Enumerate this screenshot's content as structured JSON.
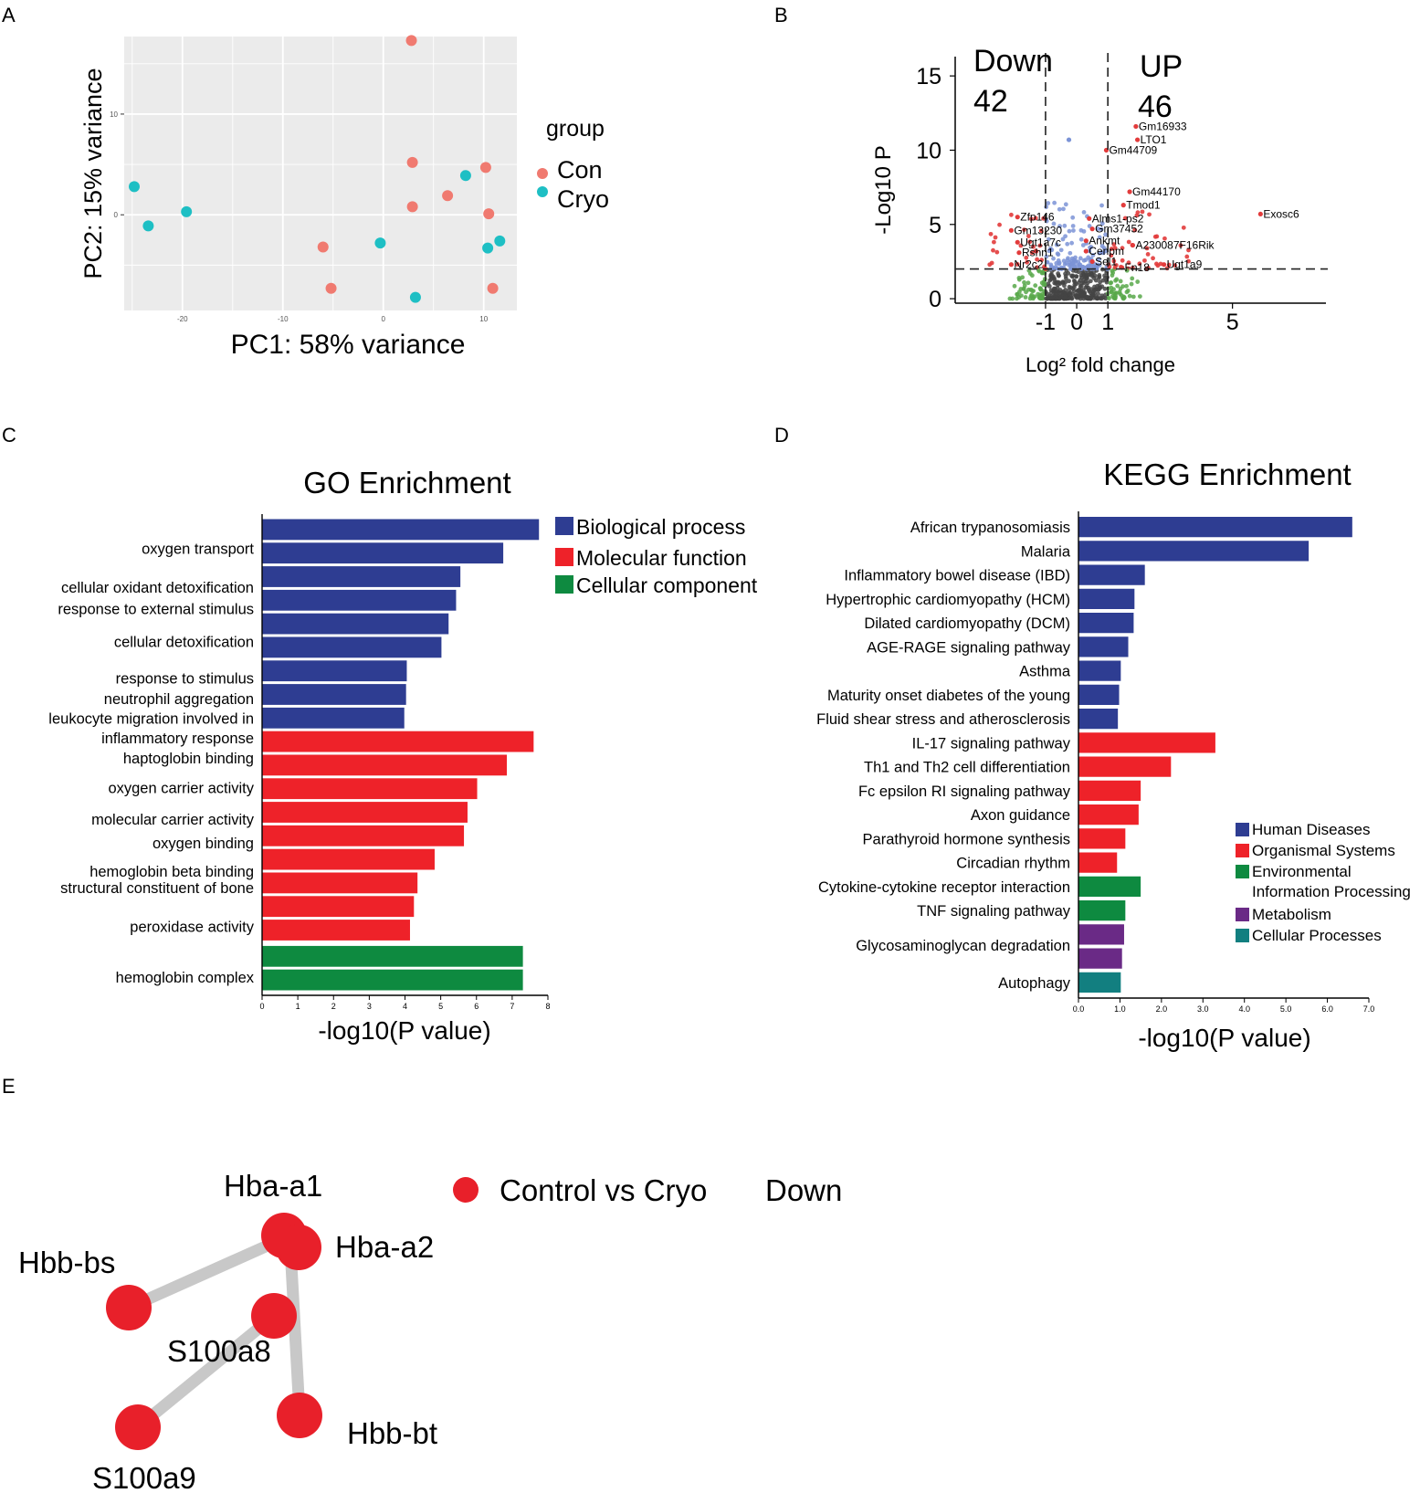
{
  "figure_panels": {
    "A": "A",
    "B": "B",
    "C": "C",
    "D": "D",
    "E": "E"
  },
  "colors": {
    "con": "#F07A70",
    "cryo": "#1EBFC4",
    "bio": "#2E3D92",
    "mol": "#EE2229",
    "cell": "#0E8A40",
    "human": "#2E3D92",
    "organismal": "#EE2229",
    "environmental": "#0E8A40",
    "metabolism": "#6A2A86",
    "cellular": "#127F80",
    "volcano_blue": "#7B93D6",
    "volcano_red": "#E23B3B",
    "volcano_green": "#58A84A",
    "volcano_grey": "#444444",
    "network_node": "#E8202A",
    "network_edge": "#C8C8C8",
    "panel_bg": "#EBEBEB"
  },
  "chart_data": [
    {
      "panel": "A",
      "type": "scatter",
      "title": "",
      "xlabel": "PC1: 58% variance",
      "ylabel": "PC2: 15% variance",
      "xlim": [
        -25.8,
        13.3
      ],
      "ylim": [
        -9.5,
        17.7
      ],
      "x_ticks": [
        -20,
        -10,
        0,
        10
      ],
      "x_tick_labels": [
        "-20",
        "-10",
        "0",
        "10"
      ],
      "y_ticks": [
        0,
        10
      ],
      "y_tick_labels": [
        "0",
        "10"
      ],
      "legend": {
        "title": "group",
        "position": "right",
        "entries": [
          "Con",
          "Cryo"
        ]
      },
      "series": [
        {
          "name": "Con",
          "x": [
            2.8,
            2.9,
            10.2,
            6.4,
            2.9,
            10.5,
            -6.0,
            -5.2,
            10.9
          ],
          "y": [
            17.3,
            5.2,
            4.7,
            1.9,
            0.8,
            0.1,
            -3.2,
            -7.3,
            -7.3
          ]
        },
        {
          "name": "Cryo",
          "x": [
            -24.8,
            -23.4,
            -19.6,
            8.2,
            -0.3,
            10.4,
            11.6,
            3.2
          ],
          "y": [
            2.8,
            -1.1,
            0.3,
            3.9,
            -2.8,
            -3.3,
            -2.6,
            -8.2
          ]
        }
      ]
    },
    {
      "panel": "B",
      "type": "scatter",
      "title": "",
      "xlabel": "Log² fold change",
      "ylabel": "-Log10 P",
      "xlim": [
        -3.9,
        8.0
      ],
      "ylim": [
        -0.3,
        16.3
      ],
      "x_ticks": [
        -1,
        0,
        1,
        5
      ],
      "x_tick_labels": [
        "-1",
        "0",
        "1",
        "5"
      ],
      "y_ticks": [
        0,
        5,
        10,
        15
      ],
      "y_tick_labels": [
        "0",
        "5",
        "10",
        "15"
      ],
      "fold_change_cutoffs": [
        -1,
        1
      ],
      "p_cutoff": 2,
      "annotations": {
        "down_label": "Down",
        "down_count": "42",
        "up_label": "UP",
        "up_count": "46"
      },
      "point_labels": [
        {
          "text": "Gm16933",
          "x": 1.9,
          "y": 11.6
        },
        {
          "text": "LTO1",
          "x": 1.95,
          "y": 10.7
        },
        {
          "text": "Gm44709",
          "x": 0.95,
          "y": 10.0
        },
        {
          "text": "Gm44170",
          "x": 1.7,
          "y": 7.2
        },
        {
          "text": "Tmod1",
          "x": 1.5,
          "y": 6.3
        },
        {
          "text": "Exosc6",
          "x": 5.9,
          "y": 5.7
        },
        {
          "text": "Zfp146",
          "x": -1.9,
          "y": 5.5
        },
        {
          "text": "Alms1-ps2",
          "x": 0.4,
          "y": 5.4
        },
        {
          "text": "Gm13230",
          "x": -2.1,
          "y": 4.6
        },
        {
          "text": "Gm37452",
          "x": 0.5,
          "y": 4.7
        },
        {
          "text": "Ugt1a7c",
          "x": -1.9,
          "y": 3.8
        },
        {
          "text": "Ankmt",
          "x": 0.3,
          "y": 3.9
        },
        {
          "text": "A230087F16Rik",
          "x": 1.8,
          "y": 3.6
        },
        {
          "text": "Rshn1",
          "x": -1.85,
          "y": 3.1
        },
        {
          "text": "Cenpm",
          "x": 0.3,
          "y": 3.2
        },
        {
          "text": "Nr2c2",
          "x": -2.1,
          "y": 2.3
        },
        {
          "text": "Sel1",
          "x": 0.5,
          "y": 2.5
        },
        {
          "text": "Fn18",
          "x": 1.45,
          "y": 2.1
        },
        {
          "text": "Ugt1a9",
          "x": 2.8,
          "y": 2.3
        }
      ]
    },
    {
      "panel": "C",
      "type": "bar",
      "orientation": "horizontal",
      "title": "GO Enrichment",
      "xlabel": "-log10(P value)",
      "ylabel": "",
      "xlim": [
        0,
        8
      ],
      "x_ticks": [
        0,
        1,
        2,
        3,
        4,
        5,
        6,
        7,
        8
      ],
      "x_tick_labels": [
        "0",
        "1",
        "2",
        "3",
        "4",
        "5",
        "6",
        "7",
        "8"
      ],
      "legend": {
        "position": "top-right",
        "entries": [
          "Biological process",
          "Molecular function",
          "Cellular component"
        ]
      },
      "bars": [
        {
          "value": 7.75,
          "category": "Biological process"
        },
        {
          "value": 6.75,
          "category": "Biological process"
        },
        {
          "value": 5.55,
          "category": "Biological process"
        },
        {
          "value": 5.43,
          "category": "Biological process"
        },
        {
          "value": 5.22,
          "category": "Biological process"
        },
        {
          "value": 5.02,
          "category": "Biological process"
        },
        {
          "value": 4.05,
          "category": "Biological process"
        },
        {
          "value": 4.03,
          "category": "Biological process"
        },
        {
          "value": 3.98,
          "category": "Biological process"
        },
        {
          "value": 7.6,
          "category": "Molecular function"
        },
        {
          "value": 6.85,
          "category": "Molecular function"
        },
        {
          "value": 6.02,
          "category": "Molecular function"
        },
        {
          "value": 5.75,
          "category": "Molecular function"
        },
        {
          "value": 5.65,
          "category": "Molecular function"
        },
        {
          "value": 4.83,
          "category": "Molecular function"
        },
        {
          "value": 4.35,
          "category": "Molecular function"
        },
        {
          "value": 4.25,
          "category": "Molecular function"
        },
        {
          "value": 4.14,
          "category": "Molecular function"
        },
        {
          "value": 7.3,
          "category": "Cellular component"
        },
        {
          "value": 7.3,
          "category": "Cellular component"
        }
      ],
      "row_labels": [
        {
          "text": "oxygen transport",
          "row": 0.8
        },
        {
          "text": "cellular oxidant detoxification",
          "row": 2.45
        },
        {
          "text": "response to external stimulus",
          "row": 3.35
        },
        {
          "text": "cellular detoxification",
          "row": 4.75
        },
        {
          "text": "response to stimulus",
          "row": 6.3
        },
        {
          "text": "neutrophil aggregation",
          "row": 7.18
        },
        {
          "text": "leukocyte migration involved in",
          "row": 8.0
        },
        {
          "text": "inflammatory response",
          "row": 8.85
        },
        {
          "text": "haptoglobin binding",
          "row": 9.7
        },
        {
          "text": "oxygen carrier activity",
          "row": 10.95
        },
        {
          "text": "molecular carrier activity",
          "row": 12.3
        },
        {
          "text": "oxygen binding",
          "row": 13.3
        },
        {
          "text": "hemoglobin beta binding",
          "row": 14.5
        },
        {
          "text": "structural constituent of bone",
          "row": 15.2
        },
        {
          "text": "peroxidase activity",
          "row": 16.85
        },
        {
          "text": "hemoglobin complex",
          "row": 19.0
        }
      ]
    },
    {
      "panel": "D",
      "type": "bar",
      "orientation": "horizontal",
      "title": "KEGG Enrichment",
      "xlabel": "-log10(P value)",
      "ylabel": "",
      "xlim": [
        0,
        7
      ],
      "x_ticks": [
        0,
        1,
        2,
        3,
        4,
        5,
        6,
        7
      ],
      "x_tick_labels": [
        "0.0",
        "1.0",
        "2.0",
        "3.0",
        "4.0",
        "5.0",
        "6.0",
        "7.0"
      ],
      "legend": {
        "position": "bottom-right",
        "entries": [
          "Human Diseases",
          "Organismal Systems",
          "Environmental",
          "Information Processing",
          "Metabolism",
          "Cellular Processes"
        ]
      },
      "bars": [
        {
          "value": 6.6,
          "category": "Human Diseases"
        },
        {
          "value": 5.55,
          "category": "Human Diseases"
        },
        {
          "value": 1.6,
          "category": "Human Diseases"
        },
        {
          "value": 1.35,
          "category": "Human Diseases"
        },
        {
          "value": 1.33,
          "category": "Human Diseases"
        },
        {
          "value": 1.2,
          "category": "Human Diseases"
        },
        {
          "value": 1.02,
          "category": "Human Diseases"
        },
        {
          "value": 0.98,
          "category": "Human Diseases"
        },
        {
          "value": 0.95,
          "category": "Human Diseases"
        },
        {
          "value": 3.3,
          "category": "Organismal Systems"
        },
        {
          "value": 2.23,
          "category": "Organismal Systems"
        },
        {
          "value": 1.5,
          "category": "Organismal Systems"
        },
        {
          "value": 1.45,
          "category": "Organismal Systems"
        },
        {
          "value": 1.13,
          "category": "Organismal Systems"
        },
        {
          "value": 0.93,
          "category": "Organismal Systems"
        },
        {
          "value": 1.5,
          "category": "Environmental Information Processing"
        },
        {
          "value": 1.13,
          "category": "Environmental Information Processing"
        },
        {
          "value": 1.1,
          "category": "Metabolism"
        },
        {
          "value": 1.05,
          "category": "Metabolism"
        },
        {
          "value": 1.02,
          "category": "Cellular Processes"
        }
      ],
      "row_labels": [
        {
          "text": "African trypanosomiasis",
          "row": 0
        },
        {
          "text": "Malaria",
          "row": 1
        },
        {
          "text": "Inflammatory bowel disease (IBD)",
          "row": 2
        },
        {
          "text": "Hypertrophic cardiomyopathy (HCM)",
          "row": 3
        },
        {
          "text": "Dilated cardiomyopathy (DCM)",
          "row": 4
        },
        {
          "text": "AGE-RAGE signaling pathway",
          "row": 5
        },
        {
          "text": "Asthma",
          "row": 6
        },
        {
          "text": "Maturity onset diabetes of the young",
          "row": 7
        },
        {
          "text": "Fluid shear stress and atherosclerosis",
          "row": 8
        },
        {
          "text": "IL-17 signaling pathway",
          "row": 9
        },
        {
          "text": "Th1 and Th2 cell differentiation",
          "row": 10
        },
        {
          "text": "Fc epsilon RI signaling pathway",
          "row": 11
        },
        {
          "text": "Axon guidance",
          "row": 12
        },
        {
          "text": "Parathyroid hormone synthesis",
          "row": 13
        },
        {
          "text": "Circadian rhythm",
          "row": 14
        },
        {
          "text": "Cytokine-cytokine receptor interaction",
          "row": 15
        },
        {
          "text": "TNF signaling pathway",
          "row": 16
        },
        {
          "text": "Glycosaminoglycan degradation",
          "row": 17.45
        },
        {
          "text": "Autophagy",
          "row": 19
        }
      ]
    }
  ],
  "network": {
    "legend_label": "Control vs Cryo",
    "legend_direction": "Down",
    "nodes": [
      {
        "id": "Hba-a1",
        "label": "Hba-a1"
      },
      {
        "id": "Hba-a2",
        "label": "Hba-a2"
      },
      {
        "id": "Hbb-bs",
        "label": "Hbb-bs"
      },
      {
        "id": "S100a8",
        "label": "S100a8"
      },
      {
        "id": "S100a9",
        "label": "S100a9"
      },
      {
        "id": "Hbb-bt",
        "label": "Hbb-bt"
      }
    ],
    "edges": [
      {
        "source": "Hba-a1",
        "target": "Hbb-bs"
      },
      {
        "source": "Hba-a2",
        "target": "Hbb-bt"
      },
      {
        "source": "S100a8",
        "target": "S100a9"
      }
    ]
  }
}
